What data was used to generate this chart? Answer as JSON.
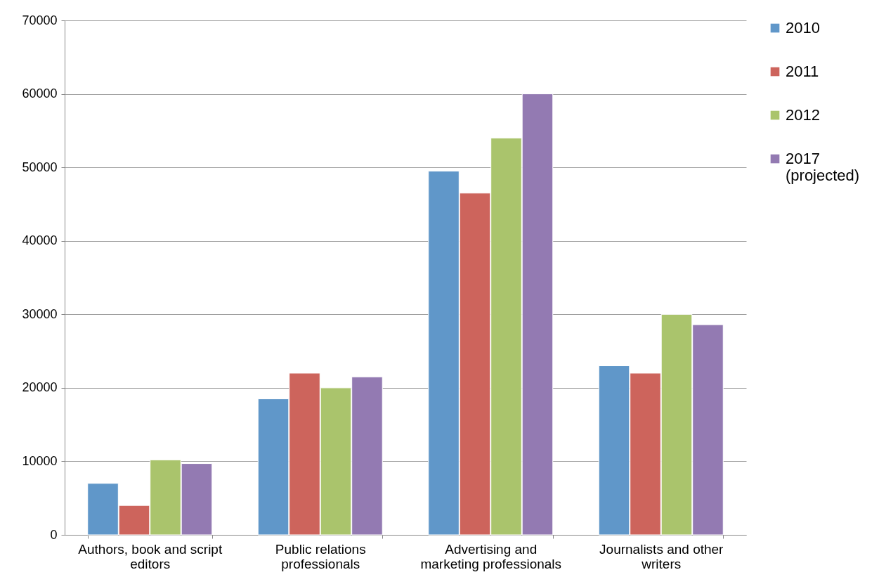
{
  "chart_data": {
    "type": "bar",
    "categories": [
      "Authors, book and script editors",
      "Public relations professionals",
      "Advertising and marketing professionals",
      "Journalists and other writers"
    ],
    "series": [
      {
        "name": "2010",
        "color": "#6097c9",
        "values": [
          7000,
          18500,
          49500,
          23000
        ]
      },
      {
        "name": "2011",
        "color": "#cd645c",
        "values": [
          4000,
          22000,
          46500,
          22000
        ]
      },
      {
        "name": "2012",
        "color": "#aac46c",
        "values": [
          10200,
          20000,
          54000,
          30000
        ]
      },
      {
        "name": "2017 (projected)",
        "color": "#937ab2",
        "values": [
          9700,
          21500,
          60000,
          28600
        ]
      }
    ],
    "ylim": [
      0,
      70000
    ],
    "yticks": [
      0,
      10000,
      20000,
      30000,
      40000,
      50000,
      60000,
      70000
    ],
    "grid": "y",
    "legend": "right"
  }
}
